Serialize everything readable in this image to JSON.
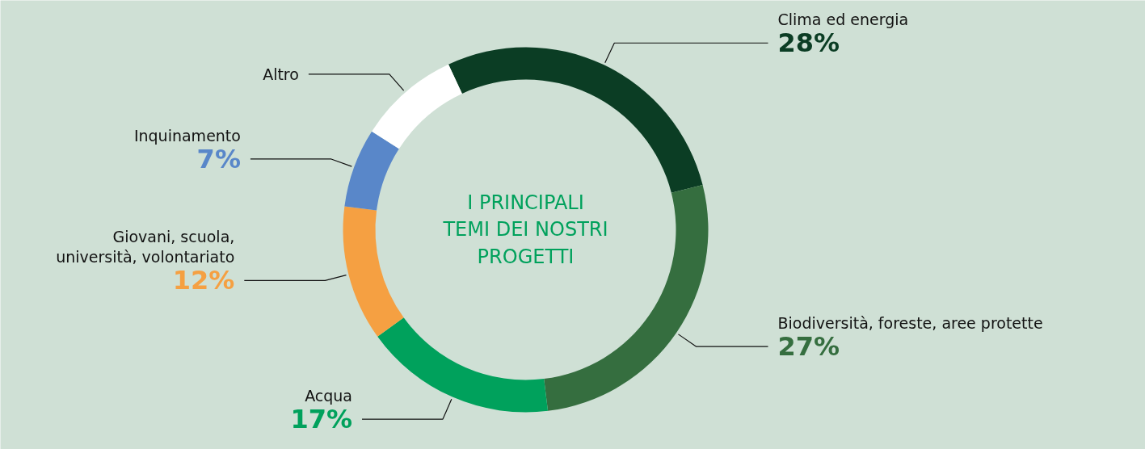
{
  "chart_data": {
    "type": "donut",
    "title": "I PRINCIPALI TEMI DEI NOSTRI PROGETTI",
    "categories": [
      "Clima ed energia",
      "Biodiversità, foreste, aree protette",
      "Acqua",
      "Giovani, scuola, università, volontariato",
      "Inquinamento",
      "Altro"
    ],
    "values": [
      28,
      27,
      17,
      12,
      7,
      9
    ],
    "colors": [
      "#0b3d24",
      "#356e3f",
      "#00a15c",
      "#f5a042",
      "#5987c9",
      "#ffffff"
    ],
    "value_labels": [
      "28%",
      "27%",
      "17%",
      "12%",
      "7%",
      null
    ]
  }
}
